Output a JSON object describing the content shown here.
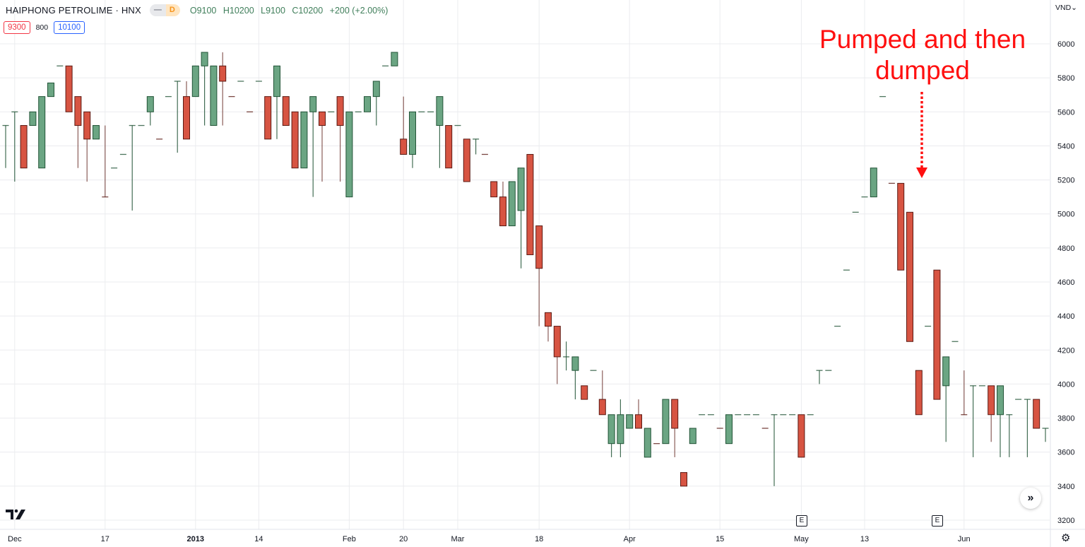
{
  "header": {
    "symbol_title": "HAIPHONG PETROLIME · HNX",
    "interval_dash": "—",
    "interval": "D",
    "ohlc": {
      "open": "O9100",
      "high": "H10200",
      "low": "L9100",
      "close": "C10200",
      "change": "+200 (+2.00%)"
    },
    "bid": "9300",
    "spread": "800",
    "ask": "10100"
  },
  "currency_label": "VND⌄",
  "annotation": {
    "line1": "Pumped and then",
    "line2": "dumped",
    "color": "#ff1010"
  },
  "earnings_marker": "E",
  "scroll_button_icon": "double-chevron-right-icon",
  "settings_icon": "gear-icon",
  "colors": {
    "up_fill": "#6ba583",
    "up_border": "#225437",
    "down_fill": "#d75442",
    "down_border": "#5b1a13",
    "grid": "#ebecef"
  },
  "chart_data": {
    "type": "candlestick",
    "title": "",
    "xlabel": "",
    "ylabel": "",
    "ylim": [
      3200,
      6000
    ],
    "y_ticks": [
      3200,
      3400,
      3600,
      3800,
      4000,
      4200,
      4400,
      4600,
      4800,
      5000,
      5200,
      5400,
      5600,
      5800,
      6000
    ],
    "grid": true,
    "x_ticks": [
      {
        "bar": 1,
        "label": "Dec"
      },
      {
        "bar": 11,
        "label": "17"
      },
      {
        "bar": 21,
        "label": "2013",
        "bold": true
      },
      {
        "bar": 28,
        "label": "14"
      },
      {
        "bar": 38,
        "label": "Feb"
      },
      {
        "bar": 44,
        "label": "20"
      },
      {
        "bar": 50,
        "label": "Mar"
      },
      {
        "bar": 59,
        "label": "18"
      },
      {
        "bar": 69,
        "label": "Apr"
      },
      {
        "bar": 79,
        "label": "15"
      },
      {
        "bar": 88,
        "label": "May"
      },
      {
        "bar": 95,
        "label": "13"
      },
      {
        "bar": 106,
        "label": "Jun"
      }
    ],
    "earnings_bars": [
      88,
      103
    ],
    "candle_fields": [
      "open",
      "high",
      "low",
      "close",
      "direction"
    ],
    "candles": [
      [
        5520,
        5520,
        5270,
        5520,
        "up"
      ],
      [
        5600,
        5600,
        5190,
        5600,
        "up"
      ],
      [
        5520,
        5520,
        5270,
        5270,
        "down"
      ],
      [
        5520,
        5600,
        5520,
        5600,
        "up"
      ],
      [
        5270,
        5690,
        5270,
        5690,
        "up"
      ],
      [
        5690,
        5770,
        5690,
        5770,
        "up"
      ],
      [
        5870,
        5870,
        5870,
        5870,
        "up"
      ],
      [
        5870,
        5870,
        5600,
        5600,
        "down"
      ],
      [
        5690,
        5690,
        5270,
        5520,
        "down"
      ],
      [
        5600,
        5600,
        5190,
        5440,
        "down"
      ],
      [
        5440,
        5520,
        5440,
        5520,
        "up"
      ],
      [
        5100,
        5520,
        5100,
        5100,
        "down"
      ],
      [
        5270,
        5270,
        5270,
        5270,
        "up"
      ],
      [
        5350,
        5350,
        5350,
        5350,
        "up"
      ],
      [
        5520,
        5520,
        5020,
        5520,
        "up"
      ],
      [
        5520,
        5520,
        5520,
        5520,
        "up"
      ],
      [
        5600,
        5690,
        5520,
        5690,
        "up"
      ],
      [
        5440,
        5440,
        5440,
        5440,
        "down"
      ],
      [
        5690,
        5690,
        5690,
        5690,
        "up"
      ],
      [
        5780,
        5780,
        5360,
        5780,
        "up"
      ],
      [
        5690,
        5780,
        5440,
        5440,
        "down"
      ],
      [
        5690,
        5870,
        5690,
        5870,
        "up"
      ],
      [
        5870,
        5950,
        5520,
        5950,
        "up"
      ],
      [
        5520,
        5870,
        5520,
        5870,
        "up"
      ],
      [
        5870,
        5950,
        5520,
        5780,
        "down"
      ],
      [
        5690,
        5690,
        5690,
        5690,
        "down"
      ],
      [
        5780,
        5780,
        5780,
        5780,
        "up"
      ],
      [
        5600,
        5600,
        5600,
        5600,
        "down"
      ],
      [
        5780,
        5780,
        5780,
        5780,
        "up"
      ],
      [
        5690,
        5690,
        5440,
        5440,
        "down"
      ],
      [
        5690,
        5870,
        5440,
        5870,
        "up"
      ],
      [
        5690,
        5690,
        5520,
        5520,
        "down"
      ],
      [
        5600,
        5600,
        5270,
        5270,
        "down"
      ],
      [
        5270,
        5600,
        5270,
        5600,
        "up"
      ],
      [
        5600,
        5690,
        5100,
        5690,
        "up"
      ],
      [
        5600,
        5600,
        5190,
        5520,
        "down"
      ],
      [
        5600,
        5600,
        5600,
        5600,
        "up"
      ],
      [
        5690,
        5690,
        5190,
        5520,
        "down"
      ],
      [
        5100,
        5600,
        5100,
        5600,
        "up"
      ],
      [
        5600,
        5600,
        5600,
        5600,
        "up"
      ],
      [
        5600,
        5690,
        5600,
        5690,
        "up"
      ],
      [
        5690,
        5780,
        5520,
        5780,
        "up"
      ],
      [
        5870,
        5870,
        5870,
        5870,
        "up"
      ],
      [
        5870,
        5950,
        5870,
        5950,
        "up"
      ],
      [
        5440,
        5690,
        5350,
        5350,
        "down"
      ],
      [
        5350,
        5600,
        5270,
        5600,
        "up"
      ],
      [
        5600,
        5600,
        5600,
        5600,
        "up"
      ],
      [
        5600,
        5600,
        5600,
        5600,
        "up"
      ],
      [
        5520,
        5690,
        5270,
        5690,
        "up"
      ],
      [
        5520,
        5520,
        5270,
        5270,
        "down"
      ],
      [
        5520,
        5520,
        5520,
        5520,
        "up"
      ],
      [
        5440,
        5440,
        5190,
        5190,
        "down"
      ],
      [
        5440,
        5440,
        5350,
        5440,
        "up"
      ],
      [
        5350,
        5350,
        5350,
        5350,
        "down"
      ],
      [
        5190,
        5190,
        5100,
        5100,
        "down"
      ],
      [
        5100,
        5190,
        4930,
        4930,
        "down"
      ],
      [
        4930,
        5190,
        4930,
        5190,
        "up"
      ],
      [
        5020,
        5270,
        4680,
        5270,
        "up"
      ],
      [
        5350,
        5350,
        4760,
        4760,
        "down"
      ],
      [
        4930,
        4930,
        4340,
        4680,
        "down"
      ],
      [
        4420,
        4420,
        4250,
        4340,
        "down"
      ],
      [
        4340,
        4340,
        4000,
        4160,
        "down"
      ],
      [
        4160,
        4250,
        4080,
        4160,
        "up"
      ],
      [
        4080,
        4160,
        3910,
        4160,
        "up"
      ],
      [
        3990,
        3990,
        3910,
        3910,
        "down"
      ],
      [
        4080,
        4080,
        4080,
        4080,
        "up"
      ],
      [
        3910,
        4080,
        3820,
        3820,
        "down"
      ],
      [
        3650,
        3820,
        3570,
        3820,
        "up"
      ],
      [
        3650,
        3910,
        3570,
        3820,
        "up"
      ],
      [
        3740,
        3820,
        3740,
        3820,
        "up"
      ],
      [
        3820,
        3910,
        3740,
        3740,
        "down"
      ],
      [
        3570,
        3740,
        3570,
        3740,
        "up"
      ],
      [
        3650,
        3650,
        3650,
        3650,
        "down"
      ],
      [
        3650,
        3910,
        3650,
        3910,
        "up"
      ],
      [
        3910,
        3910,
        3570,
        3740,
        "down"
      ],
      [
        3480,
        3480,
        3400,
        3400,
        "down"
      ],
      [
        3650,
        3740,
        3650,
        3740,
        "up"
      ],
      [
        3820,
        3820,
        3820,
        3820,
        "up"
      ],
      [
        3820,
        3820,
        3820,
        3820,
        "up"
      ],
      [
        3740,
        3740,
        3740,
        3740,
        "down"
      ],
      [
        3650,
        3820,
        3650,
        3820,
        "up"
      ],
      [
        3820,
        3820,
        3820,
        3820,
        "up"
      ],
      [
        3820,
        3820,
        3820,
        3820,
        "up"
      ],
      [
        3820,
        3820,
        3820,
        3820,
        "up"
      ],
      [
        3740,
        3740,
        3740,
        3740,
        "down"
      ],
      [
        3820,
        3820,
        3400,
        3820,
        "up"
      ],
      [
        3820,
        3820,
        3820,
        3820,
        "up"
      ],
      [
        3820,
        3820,
        3820,
        3820,
        "up"
      ],
      [
        3820,
        3820,
        3570,
        3570,
        "down"
      ],
      [
        3820,
        3820,
        3820,
        3820,
        "up"
      ],
      [
        4080,
        4080,
        4000,
        4080,
        "up"
      ],
      [
        4080,
        4080,
        4080,
        4080,
        "up"
      ],
      [
        4340,
        4340,
        4340,
        4340,
        "up"
      ],
      [
        4670,
        4670,
        4670,
        4670,
        "up"
      ],
      [
        5010,
        5010,
        5010,
        5010,
        "up"
      ],
      [
        5100,
        5100,
        5100,
        5100,
        "up"
      ],
      [
        5100,
        5270,
        5100,
        5270,
        "up"
      ],
      [
        5690,
        5690,
        5690,
        5690,
        "up"
      ],
      [
        5180,
        5180,
        5180,
        5180,
        "down"
      ],
      [
        5180,
        5180,
        4670,
        4670,
        "down"
      ],
      [
        5010,
        5010,
        4250,
        4250,
        "down"
      ],
      [
        4080,
        4080,
        3820,
        3820,
        "down"
      ],
      [
        4340,
        4340,
        4340,
        4340,
        "up"
      ],
      [
        4670,
        4670,
        3910,
        3910,
        "down"
      ],
      [
        3990,
        4160,
        3660,
        4160,
        "up"
      ],
      [
        4250,
        4250,
        4250,
        4250,
        "up"
      ],
      [
        3820,
        4080,
        3820,
        3820,
        "down"
      ],
      [
        3990,
        3990,
        3570,
        3990,
        "up"
      ],
      [
        3990,
        3990,
        3990,
        3990,
        "up"
      ],
      [
        3990,
        3990,
        3660,
        3820,
        "down"
      ],
      [
        3820,
        3990,
        3570,
        3990,
        "up"
      ],
      [
        3820,
        3820,
        3570,
        3820,
        "up"
      ],
      [
        3910,
        3910,
        3910,
        3910,
        "up"
      ],
      [
        3910,
        3910,
        3570,
        3910,
        "up"
      ],
      [
        3910,
        3910,
        3740,
        3740,
        "down"
      ],
      [
        3740,
        3740,
        3660,
        3740,
        "up"
      ]
    ]
  }
}
